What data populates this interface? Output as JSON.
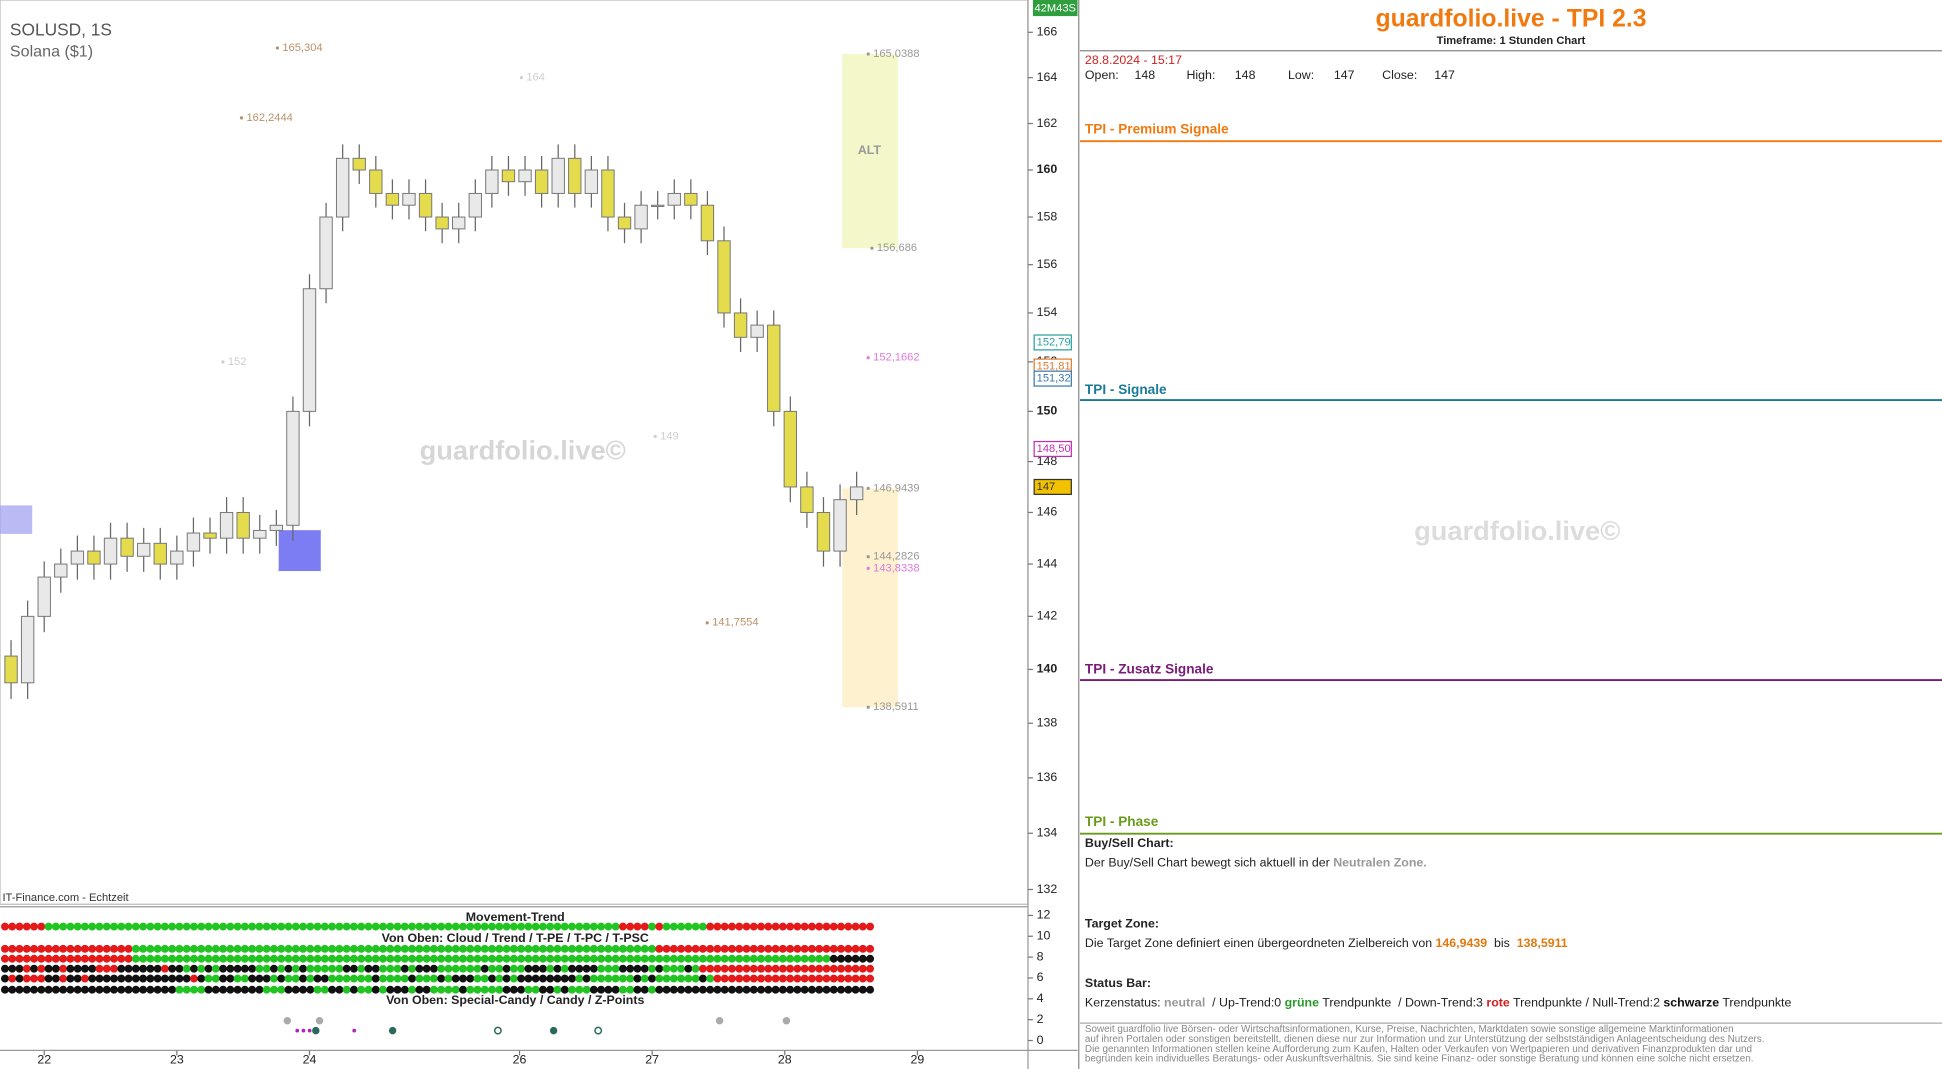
{
  "chart_data": {
    "type": "candlestick",
    "symbol": "SOLUSD, 1S",
    "name": "Solana ($1)",
    "timer": "42M43S",
    "source": "IT-Finance.com - Echtzeit",
    "watermark": "guardfolio.live©",
    "zone_label": "ALT",
    "x": [
      2,
      5,
      8,
      11,
      14,
      17,
      20,
      23,
      26,
      29,
      32,
      35,
      38,
      41,
      44,
      47,
      50,
      53,
      56,
      59,
      62,
      65,
      68,
      71,
      74,
      77,
      80,
      83,
      86,
      89,
      92,
      95,
      98,
      101,
      104,
      107,
      110,
      113,
      116,
      119,
      122,
      125,
      128,
      131,
      134,
      137,
      140,
      143,
      146,
      149,
      152,
      155
    ],
    "open": [
      140.5,
      139.5,
      142,
      143.5,
      144,
      144.5,
      144,
      145,
      144.3,
      144.8,
      144,
      144.5,
      145.2,
      145,
      146,
      145,
      145.3,
      145.5,
      150,
      155,
      158,
      160.5,
      160,
      159,
      158.5,
      159,
      158,
      157.5,
      158,
      159,
      160,
      159.5,
      160,
      159,
      160.5,
      159,
      160,
      158,
      157.5,
      158.5,
      158.5,
      159,
      158.5,
      157,
      154,
      153,
      153.5,
      150,
      147,
      146,
      144.5,
      146.5
    ],
    "high": [
      141.1,
      142.6,
      144.1,
      144.6,
      145.1,
      145.1,
      145.6,
      145.6,
      145.4,
      145.4,
      145.1,
      145.8,
      145.8,
      146.6,
      146.6,
      145.9,
      146.1,
      150.6,
      155.6,
      158.6,
      161.1,
      161.1,
      160.6,
      159.6,
      159.6,
      159.6,
      158.6,
      158.6,
      159.6,
      160.6,
      160.6,
      160.6,
      160.6,
      161.1,
      161.1,
      160.6,
      160.6,
      158.6,
      159.1,
      159.1,
      159.6,
      159.6,
      159.1,
      157.6,
      154.6,
      154.1,
      154.1,
      150.6,
      147.6,
      146.6,
      147.1,
      147.6
    ],
    "low": [
      138.9,
      138.9,
      141.4,
      142.9,
      143.4,
      143.4,
      143.4,
      143.7,
      143.7,
      143.4,
      143.4,
      143.9,
      144.4,
      144.4,
      144.4,
      144.4,
      144.7,
      144.9,
      149.4,
      154.4,
      157.4,
      159.4,
      158.4,
      157.9,
      157.9,
      157.4,
      156.9,
      156.9,
      157.4,
      158.4,
      158.9,
      158.9,
      158.4,
      158.4,
      158.4,
      158.4,
      157.4,
      156.9,
      156.9,
      157.9,
      157.9,
      157.9,
      156.4,
      153.4,
      152.4,
      152.4,
      149.4,
      146.4,
      145.4,
      143.9,
      143.9,
      145.9
    ],
    "close": [
      139.5,
      142,
      143.5,
      144,
      144.5,
      144,
      145,
      144.3,
      144.8,
      144,
      144.5,
      145.2,
      145,
      146,
      145,
      145.3,
      145.5,
      150,
      155,
      158,
      160.5,
      160,
      159,
      158.5,
      159,
      158,
      157.5,
      158,
      159,
      160,
      159.5,
      160,
      159,
      160.5,
      159,
      160,
      158,
      157.5,
      158.5,
      158.5,
      159,
      158.5,
      157,
      154,
      153,
      153.5,
      150,
      147,
      146,
      144.5,
      146.5,
      147
    ],
    "up_color": "#e9e9e9",
    "down_color": "#e4dc4c",
    "log_scale": true,
    "xlim": [
      0,
      186
    ],
    "xticks": [
      {
        "value": 8,
        "label": "22"
      },
      {
        "value": 32,
        "label": "23"
      },
      {
        "value": 56,
        "label": "24"
      },
      {
        "value": 94,
        "label": "26"
      },
      {
        "value": 118,
        "label": "27"
      },
      {
        "value": 142,
        "label": "28"
      },
      {
        "value": 166,
        "label": "29"
      }
    ],
    "ylim": [
      131.48,
      167.44
    ],
    "yticks": [
      132,
      134,
      136,
      138,
      140,
      142,
      144,
      146,
      148,
      150,
      152,
      154,
      156,
      158,
      160,
      162,
      164,
      166
    ],
    "levels": [
      {
        "label": "165,304",
        "value": 165.304,
        "color": "#b8926a"
      },
      {
        "label": "162,2444",
        "value": 162.2444,
        "color": "#b8926a"
      },
      {
        "label": "164",
        "value": 164,
        "color": "#cfcfcf"
      },
      {
        "label": "152",
        "value": 152,
        "color": "#cfcfcf"
      },
      {
        "label": "149",
        "value": 149,
        "color": "#cfcfcf"
      },
      {
        "label": "165,0388",
        "value": 165.0388,
        "color": "#999999"
      },
      {
        "label": "156,686",
        "value": 156.686,
        "color": "#999999"
      },
      {
        "label": "152,1662",
        "value": 152.1662,
        "color": "#e07ad8"
      },
      {
        "label": "146,9439",
        "value": 146.9439,
        "color": "#999999"
      },
      {
        "label": "144,2826",
        "value": 144.2826,
        "color": "#999999"
      },
      {
        "label": "143,8338",
        "value": 143.8338,
        "color": "#e07ad8"
      },
      {
        "label": "141,7554",
        "value": 141.7554,
        "color": "#b8926a"
      },
      {
        "label": "138,5911",
        "value": 138.5911,
        "color": "#999999"
      }
    ],
    "zone_colors": [
      "#f3f7c9",
      "#fdf1cf"
    ],
    "price_tags": [
      {
        "label": "152,79",
        "value": 152.79,
        "color": "#2aa0a0",
        "fill": "#ffffff"
      },
      {
        "label": "151,81",
        "value": 151.81,
        "color": "#e07a30",
        "fill": "#ffffff"
      },
      {
        "label": "151,32",
        "value": 151.32,
        "color": "#3a7ab0",
        "fill": "#ffffff"
      },
      {
        "label": "148,50",
        "value": 148.5,
        "color": "#c030b0",
        "fill": "#ffffff"
      },
      {
        "label": "147",
        "value": 147,
        "color": "#333333",
        "fill": "#f2c200"
      }
    ]
  },
  "indicator": {
    "title": "Movement-Trend",
    "subtitle": "Von Oben: Cloud / Trend / T-PE / T-PC / T-PSC",
    "subtitle2": "Von Oben: Special-Candy / Candy / Z-Points",
    "ylim": [
      0,
      12
    ],
    "yticks": [
      12,
      10,
      8,
      6,
      4,
      2,
      0
    ]
  },
  "panel": {
    "title": "guardfolio.live - TPI 2.3",
    "timeframe": "Timeframe: 1 Stunden Chart",
    "datetime": "28.8.2024 - 15:17",
    "ohlc": [
      {
        "label": "Open:",
        "value": 148
      },
      {
        "label": "High:",
        "value": 148
      },
      {
        "label": "Low:",
        "value": 147
      },
      {
        "label": "Close:",
        "value": 147
      }
    ],
    "sections": [
      "TPI - Premium Signale",
      "TPI - Signale",
      "TPI - Zusatz Signale",
      "TPI - Phase"
    ],
    "watermark": "guardfolio.live©",
    "buy_sell": {
      "heading": "Buy/Sell Chart:",
      "text": [
        "Der Buy/Sell Chart bewegt sich aktuell in der ",
        "Neutralen Zone."
      ]
    },
    "target": {
      "heading": "Target Zone:",
      "text": [
        "Die Target Zone definiert einen übergeordneten Zielbereich von ",
        "146,9439",
        "  bis  ",
        "138,5911"
      ]
    },
    "status": {
      "heading": "Status Bar:",
      "text": [
        "Kerzenstatus: ",
        "neutral",
        "  / Up-Trend:0 ",
        "grüne",
        " Trendpunkte  / Down-Trend:3 ",
        "rote",
        " Trendpunkte / Null-Trend:2 ",
        "schwarze",
        " Trendpunkte"
      ]
    },
    "disclaimer": [
      "Soweit guardfolio live Börsen- oder Wirtschaftsinformationen, Kurse, Preise, Nachrichten, Marktdaten sowie sonstige allgemeine Marktinformationen",
      "auf ihren Portalen oder sonstigen bereitstellt, dienen diese nur zur Information und zur Unterstützung der selbstständigen Anlageentscheidung des Nutzers.",
      "Die genannten Informationen stellen keine Aufforderung zum Kaufen, Halten oder Verkaufen von Wertpapieren und derivativen Finanzprodukten dar und",
      "begründen kein individuelles Beratungs- oder Auskunftsverhältnis. Sie sind keine Finanz- oder sonstige Beratung und können eine solche nicht ersetzen."
    ]
  }
}
